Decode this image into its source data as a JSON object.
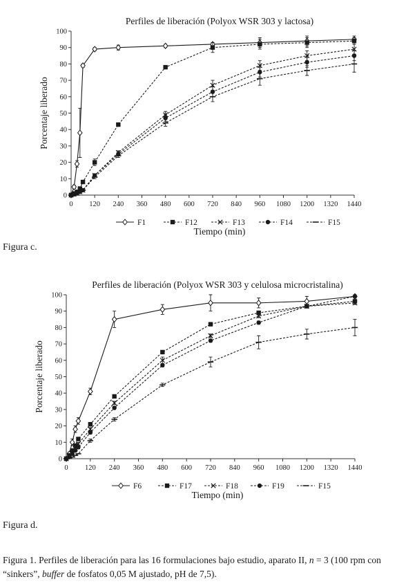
{
  "figure_c_label": "Figura c.",
  "figure_d_label": "Figura d.",
  "caption": {
    "part1": "Figura 1. Perfiles de liberación para las 16 formulaciones bajo estudio, aparato II, ",
    "n_symbol": "n",
    "part2": " = 3 (100 rpm con “sinkers”, ",
    "buffer_word": "buffer",
    "part3": " de fosfatos 0,05 M ajustado, pH de 7,5)."
  },
  "chart_data": [
    {
      "type": "line",
      "title": "Perfiles de liberación (Polyox WSR 303 y lactosa)",
      "xlabel": "Tiempo (min)",
      "ylabel": "Porcentaje liberado",
      "xlim": [
        0,
        1440
      ],
      "ylim": [
        0,
        100
      ],
      "xticks": [
        0,
        120,
        240,
        360,
        480,
        600,
        720,
        840,
        960,
        1080,
        1200,
        1320,
        1440
      ],
      "yticks": [
        0,
        10,
        20,
        30,
        40,
        50,
        60,
        70,
        80,
        90,
        100
      ],
      "grid": false,
      "legend": "bottom",
      "series": [
        {
          "name": "F1",
          "marker": "diamond",
          "dash": "solid",
          "x": [
            0,
            15,
            30,
            45,
            60,
            120,
            240,
            480,
            720,
            960,
            1200,
            1440
          ],
          "y": [
            0,
            5,
            19,
            38,
            79,
            89,
            90,
            91,
            92,
            93,
            94,
            95
          ],
          "err": [
            0,
            1,
            2,
            15,
            1,
            1,
            1.5,
            1,
            1,
            3,
            3,
            2
          ]
        },
        {
          "name": "F12",
          "marker": "square",
          "dash": "dash",
          "x": [
            0,
            15,
            30,
            45,
            60,
            120,
            240,
            480,
            720,
            960,
            1200,
            1440
          ],
          "y": [
            0,
            1,
            2,
            4,
            8,
            20,
            43,
            78,
            90,
            92,
            93,
            94
          ],
          "err": [
            0,
            0,
            0,
            0,
            1,
            2,
            1,
            1,
            3,
            3,
            3,
            2
          ]
        },
        {
          "name": "F13",
          "marker": "x",
          "dash": "dash",
          "x": [
            0,
            15,
            30,
            45,
            60,
            120,
            240,
            480,
            720,
            960,
            1200,
            1440
          ],
          "y": [
            0,
            0.5,
            1,
            2,
            3,
            12,
            26,
            49,
            67,
            79,
            85,
            89
          ],
          "err": [
            0,
            0,
            0,
            0,
            0,
            1,
            1,
            2,
            3,
            3,
            3,
            3
          ]
        },
        {
          "name": "F14",
          "marker": "circle",
          "dash": "dash",
          "x": [
            0,
            15,
            30,
            45,
            60,
            120,
            240,
            480,
            720,
            960,
            1200,
            1440
          ],
          "y": [
            0,
            0.5,
            1,
            2,
            3,
            12,
            25,
            47,
            63,
            75,
            81,
            85
          ],
          "err": [
            0,
            0,
            0,
            0,
            0,
            1,
            1,
            2,
            3,
            3,
            3,
            3
          ]
        },
        {
          "name": "F15",
          "marker": "dash",
          "dash": "dash",
          "x": [
            0,
            15,
            30,
            45,
            60,
            120,
            240,
            480,
            720,
            960,
            1200,
            1440
          ],
          "y": [
            0,
            0.5,
            1,
            2,
            3,
            11,
            24,
            44,
            60,
            71,
            76,
            80
          ],
          "err": [
            0,
            0,
            0,
            0,
            0,
            1,
            1,
            2,
            3,
            4,
            3,
            5
          ]
        }
      ]
    },
    {
      "type": "line",
      "title": "Perfiles de liberación (Polyox WSR 303 y celulosa microcristalina)",
      "xlabel": "Tiempo (min)",
      "ylabel": "Porcentaje liberado",
      "xlim": [
        0,
        1440
      ],
      "ylim": [
        0,
        100
      ],
      "xticks": [
        0,
        120,
        240,
        360,
        480,
        600,
        720,
        840,
        960,
        1080,
        1200,
        1320,
        1440
      ],
      "yticks": [
        0,
        10,
        20,
        30,
        40,
        50,
        60,
        70,
        80,
        90,
        100
      ],
      "grid": false,
      "legend": "bottom",
      "series": [
        {
          "name": "F6",
          "marker": "diamond",
          "dash": "solid",
          "x": [
            0,
            15,
            30,
            45,
            60,
            120,
            240,
            480,
            720,
            960,
            1200,
            1440
          ],
          "y": [
            0,
            3,
            10,
            18,
            23,
            41,
            85,
            91,
            95,
            95,
            96,
            99
          ],
          "err": [
            0,
            1,
            2,
            2,
            2,
            2,
            5,
            3,
            5,
            3,
            3,
            1
          ]
        },
        {
          "name": "F17",
          "marker": "square",
          "dash": "dash",
          "x": [
            0,
            15,
            30,
            45,
            60,
            120,
            240,
            480,
            720,
            960,
            1200,
            1440
          ],
          "y": [
            0,
            2,
            5,
            8,
            12,
            21,
            38,
            65,
            82,
            89,
            93,
            96
          ],
          "err": [
            0,
            0,
            1,
            1,
            1,
            1,
            1,
            1,
            1,
            1,
            1,
            1
          ]
        },
        {
          "name": "F18",
          "marker": "x",
          "dash": "dash",
          "x": [
            0,
            15,
            30,
            45,
            60,
            120,
            240,
            480,
            720,
            960,
            1200,
            1440
          ],
          "y": [
            0,
            1.5,
            4,
            6,
            9,
            18,
            34,
            60,
            75,
            87,
            93,
            95
          ],
          "err": [
            0,
            0,
            1,
            1,
            1,
            1,
            1,
            2,
            1,
            1,
            1,
            1
          ]
        },
        {
          "name": "F19",
          "marker": "circle",
          "dash": "dash",
          "x": [
            0,
            15,
            30,
            45,
            60,
            120,
            240,
            480,
            720,
            960,
            1200,
            1440
          ],
          "y": [
            0,
            1,
            3,
            5,
            7,
            16,
            31,
            57,
            72,
            83,
            93,
            99
          ],
          "err": [
            0,
            0,
            1,
            1,
            1,
            1,
            1,
            1,
            1,
            1,
            1,
            1
          ]
        },
        {
          "name": "F15",
          "marker": "dash",
          "dash": "dash",
          "x": [
            0,
            15,
            30,
            45,
            60,
            120,
            240,
            480,
            720,
            960,
            1200,
            1440
          ],
          "y": [
            0,
            0.5,
            1,
            2,
            3,
            11,
            24,
            45,
            59,
            71,
            76,
            80
          ],
          "err": [
            0,
            0,
            0,
            0,
            0,
            1,
            1,
            1,
            3,
            4,
            3,
            5
          ]
        }
      ]
    }
  ]
}
